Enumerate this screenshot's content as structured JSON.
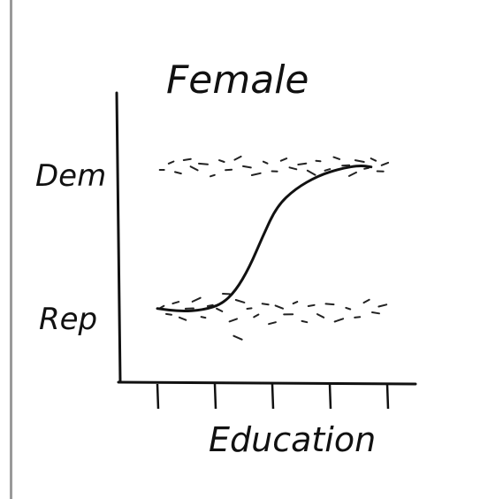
{
  "chart_data": {
    "type": "scatter",
    "title": "Female",
    "xlabel": "Education",
    "ylabel": "",
    "y_categories": [
      "Rep",
      "Dem"
    ],
    "x_ticks": 5,
    "points": [
      {
        "x": 0.02,
        "y": 0.03
      },
      {
        "x": 0.05,
        "y": -0.02
      },
      {
        "x": 0.08,
        "y": 0.06
      },
      {
        "x": 0.11,
        "y": -0.05
      },
      {
        "x": 0.14,
        "y": 0.02
      },
      {
        "x": 0.17,
        "y": 0.08
      },
      {
        "x": 0.2,
        "y": -0.04
      },
      {
        "x": 0.23,
        "y": 0.04
      },
      {
        "x": 0.27,
        "y": 0.01
      },
      {
        "x": 0.3,
        "y": 0.12
      },
      {
        "x": 0.33,
        "y": -0.06
      },
      {
        "x": 0.36,
        "y": 0.07
      },
      {
        "x": 0.4,
        "y": 0.02
      },
      {
        "x": 0.43,
        "y": -0.03
      },
      {
        "x": 0.47,
        "y": 0.05
      },
      {
        "x": 0.5,
        "y": -0.08
      },
      {
        "x": 0.53,
        "y": 0.03
      },
      {
        "x": 0.57,
        "y": -0.02
      },
      {
        "x": 0.6,
        "y": 0.06
      },
      {
        "x": 0.64,
        "y": -0.07
      },
      {
        "x": 0.67,
        "y": 0.04
      },
      {
        "x": 0.71,
        "y": -0.03
      },
      {
        "x": 0.75,
        "y": 0.05
      },
      {
        "x": 0.79,
        "y": -0.06
      },
      {
        "x": 0.83,
        "y": 0.02
      },
      {
        "x": 0.87,
        "y": -0.04
      },
      {
        "x": 0.91,
        "y": 0.07
      },
      {
        "x": 0.95,
        "y": -0.01
      },
      {
        "x": 0.98,
        "y": 0.04
      },
      {
        "x": 0.35,
        "y": -0.18
      },
      {
        "x": 0.02,
        "y": 0.97
      },
      {
        "x": 0.06,
        "y": 1.02
      },
      {
        "x": 0.09,
        "y": 0.95
      },
      {
        "x": 0.13,
        "y": 1.04
      },
      {
        "x": 0.16,
        "y": 0.98
      },
      {
        "x": 0.2,
        "y": 1.01
      },
      {
        "x": 0.24,
        "y": 0.93
      },
      {
        "x": 0.28,
        "y": 1.03
      },
      {
        "x": 0.31,
        "y": 0.97
      },
      {
        "x": 0.35,
        "y": 1.05
      },
      {
        "x": 0.39,
        "y": 0.99
      },
      {
        "x": 0.43,
        "y": 0.94
      },
      {
        "x": 0.47,
        "y": 1.02
      },
      {
        "x": 0.51,
        "y": 0.96
      },
      {
        "x": 0.55,
        "y": 1.04
      },
      {
        "x": 0.59,
        "y": 0.98
      },
      {
        "x": 0.63,
        "y": 1.01
      },
      {
        "x": 0.67,
        "y": 0.95
      },
      {
        "x": 0.7,
        "y": 1.03
      },
      {
        "x": 0.74,
        "y": 0.97
      },
      {
        "x": 0.78,
        "y": 1.05
      },
      {
        "x": 0.82,
        "y": 1.0
      },
      {
        "x": 0.85,
        "y": 0.94
      },
      {
        "x": 0.88,
        "y": 1.03
      },
      {
        "x": 0.91,
        "y": 0.98
      },
      {
        "x": 0.94,
        "y": 1.04
      },
      {
        "x": 0.97,
        "y": 0.96
      },
      {
        "x": 0.99,
        "y": 1.01
      }
    ],
    "curve": {
      "type": "logistic",
      "x": [
        0.0,
        0.1,
        0.2,
        0.28,
        0.34,
        0.4,
        0.46,
        0.52,
        0.6,
        0.7,
        0.8,
        0.88,
        0.93
      ],
      "y": [
        0.02,
        0.0,
        0.01,
        0.05,
        0.14,
        0.3,
        0.52,
        0.72,
        0.84,
        0.93,
        0.98,
        1.0,
        0.99
      ]
    },
    "grid": false,
    "legend": "none"
  },
  "colors": {
    "ink": "#111111",
    "paper": "#ffffff",
    "edge": "#9a9a9a"
  }
}
